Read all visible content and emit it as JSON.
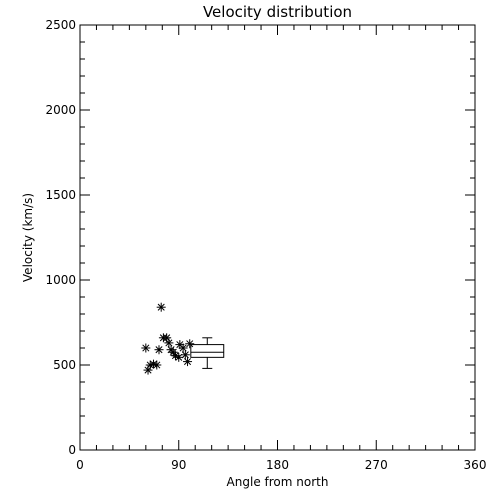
{
  "chart_data": {
    "type": "scatter",
    "title": "Velocity distribution",
    "xlabel": "Angle from north",
    "ylabel": "Velocity (km/s)",
    "xlim": [
      0,
      360
    ],
    "ylim": [
      0,
      2500
    ],
    "xticks": [
      0,
      90,
      180,
      270,
      360
    ],
    "xtick_labels": [
      "0",
      "90",
      "180",
      "270",
      "360"
    ],
    "yticks": [
      0,
      500,
      1000,
      1500,
      2000,
      2500
    ],
    "ytick_labels": [
      "0",
      "500",
      "1000",
      "1500",
      "2000",
      "2500"
    ],
    "grid": false,
    "marker": "asterisk",
    "points": [
      {
        "x": 60,
        "y": 600
      },
      {
        "x": 62,
        "y": 470
      },
      {
        "x": 64,
        "y": 500
      },
      {
        "x": 67,
        "y": 505
      },
      {
        "x": 70,
        "y": 500
      },
      {
        "x": 72,
        "y": 590
      },
      {
        "x": 74,
        "y": 840
      },
      {
        "x": 76,
        "y": 660
      },
      {
        "x": 79,
        "y": 660
      },
      {
        "x": 81,
        "y": 630
      },
      {
        "x": 83,
        "y": 590
      },
      {
        "x": 85,
        "y": 575
      },
      {
        "x": 87,
        "y": 555
      },
      {
        "x": 90,
        "y": 545
      },
      {
        "x": 91,
        "y": 620
      },
      {
        "x": 94,
        "y": 600
      },
      {
        "x": 96,
        "y": 560
      },
      {
        "x": 98,
        "y": 520
      },
      {
        "x": 100,
        "y": 625
      }
    ],
    "boxplot": {
      "x_left": 101,
      "x_right": 131,
      "whisker_low": 480,
      "q1": 545,
      "median": 575,
      "q3": 620,
      "whisker_high": 660
    }
  }
}
